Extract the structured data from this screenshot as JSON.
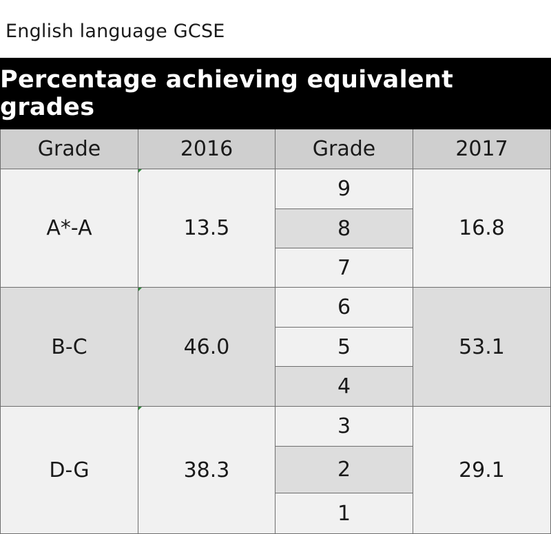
{
  "subtitle": "English language GCSE",
  "title": "Percentage achieving equivalent grades",
  "headers": [
    "Grade",
    "2016",
    "Grade",
    "2017"
  ],
  "bands": [
    {
      "old_grade": "A*-A",
      "pct_2016": "13.5",
      "new_grades": [
        "9",
        "8",
        "7"
      ],
      "pct_2017": "16.8"
    },
    {
      "old_grade": "B-C",
      "pct_2016": "46.0",
      "new_grades": [
        "6",
        "5",
        "4"
      ],
      "pct_2017": "53.1"
    },
    {
      "old_grade": "D-G",
      "pct_2016": "38.3",
      "new_grades": [
        "3",
        "2",
        "1"
      ],
      "pct_2017": "29.1"
    }
  ],
  "colors": {
    "banner": "#000000",
    "header": "#cfcfcf",
    "light": "#f1f1f1",
    "mid": "#dddddd"
  }
}
